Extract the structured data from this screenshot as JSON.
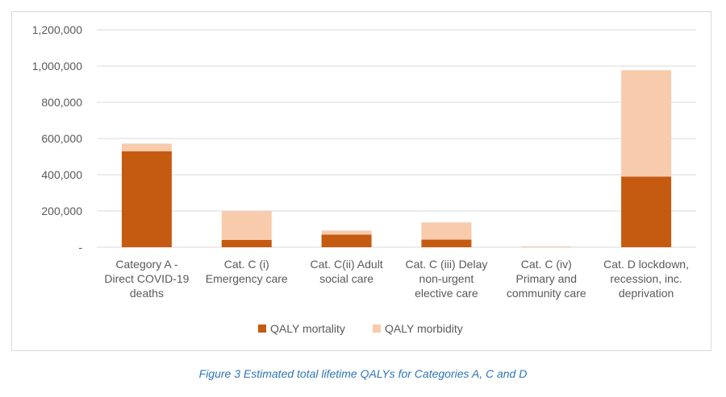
{
  "chart_data": {
    "type": "bar",
    "stacked": true,
    "categories": [
      [
        "Category A -",
        "Direct COVID-19",
        "deaths"
      ],
      [
        "Cat. C (i)",
        "Emergency care"
      ],
      [
        "Cat. C(ii) Adult",
        "social care"
      ],
      [
        "Cat. C (iii) Delay",
        "non-urgent",
        "elective care"
      ],
      [
        "Cat. C (iv)",
        "Primary and",
        "community care"
      ],
      [
        "Cat. D lockdown,",
        "recession, inc.",
        "deprivation"
      ]
    ],
    "series": [
      {
        "name": "QALY mortality",
        "color": "#c55a11",
        "values": [
          530000,
          40000,
          70000,
          42000,
          1000,
          390000
        ]
      },
      {
        "name": "QALY morbidity",
        "color": "#f8cbad",
        "values": [
          42000,
          160000,
          22000,
          95000,
          3000,
          587000
        ]
      }
    ],
    "ylim": [
      0,
      1200000
    ],
    "yticks": [
      0,
      200000,
      400000,
      600000,
      800000,
      1000000,
      1200000
    ],
    "ytick_labels": [
      "-",
      "200,000",
      "400,000",
      "600,000",
      "800,000",
      "1,000,000",
      "1,200,000"
    ],
    "grid": true,
    "legend_position": "bottom"
  },
  "caption": "Figure 3 Estimated total lifetime QALYs for Categories A, C and D"
}
